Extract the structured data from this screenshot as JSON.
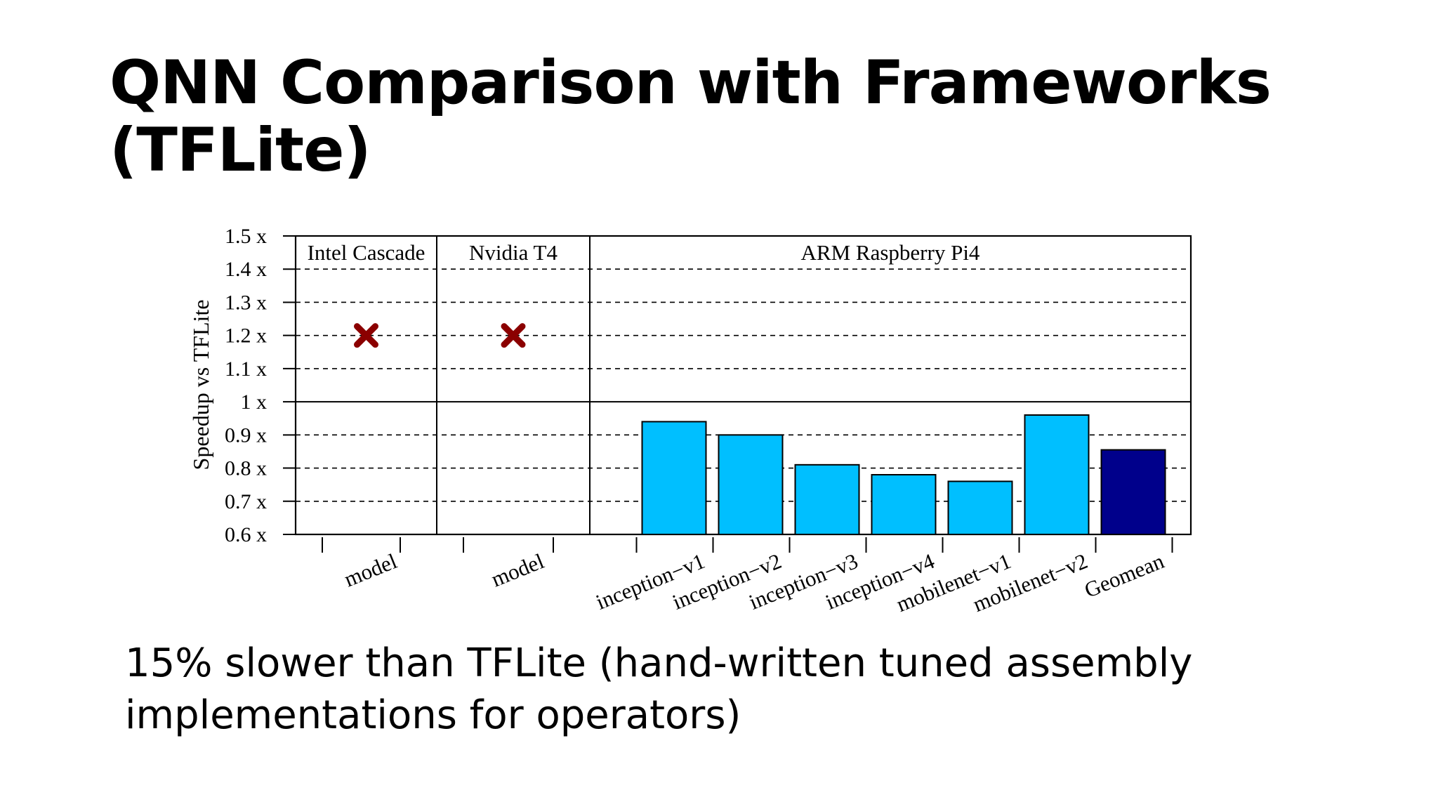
{
  "slide": {
    "title_line1": "QNN Comparison with Frameworks",
    "title_line2": "(TFLite)",
    "caption_line1": "15% slower than TFLite (hand-written tuned assembly",
    "caption_line2": "implementations for operators)"
  },
  "chart_data": {
    "type": "bar",
    "ylabel": "Speedup vs TFLite",
    "ylim": [
      0.6,
      1.5
    ],
    "yticks": [
      0.6,
      0.7,
      0.8,
      0.9,
      1.0,
      1.1,
      1.2,
      1.3,
      1.4,
      1.5
    ],
    "ytick_labels": [
      "0.6 x",
      "0.7 x",
      "0.8 x",
      "0.9 x",
      "1 x",
      "1.1 x",
      "1.2 x",
      "1.3 x",
      "1.4 x",
      "1.5 x"
    ],
    "grid": true,
    "reference_line": 1.0,
    "panels": [
      {
        "name": "Intel Cascade",
        "categories": [
          "model"
        ],
        "values": [
          null
        ],
        "markers": [
          {
            "category": "model",
            "y": 1.2,
            "symbol": "x",
            "color": "#8b0000"
          }
        ]
      },
      {
        "name": "Nvidia T4",
        "categories": [
          "model"
        ],
        "values": [
          null
        ],
        "markers": [
          {
            "category": "model",
            "y": 1.2,
            "symbol": "x",
            "color": "#8b0000"
          }
        ]
      },
      {
        "name": "ARM Raspberry Pi4",
        "categories": [
          "inception−v1",
          "inception−v2",
          "inception−v3",
          "inception−v4",
          "mobilenet−v1",
          "mobilenet−v2",
          "Geomean"
        ],
        "values": [
          0.94,
          0.9,
          0.81,
          0.78,
          0.76,
          0.96,
          0.855
        ],
        "colors": [
          "#00bfff",
          "#00bfff",
          "#00bfff",
          "#00bfff",
          "#00bfff",
          "#00bfff",
          "#00008b"
        ]
      }
    ]
  }
}
